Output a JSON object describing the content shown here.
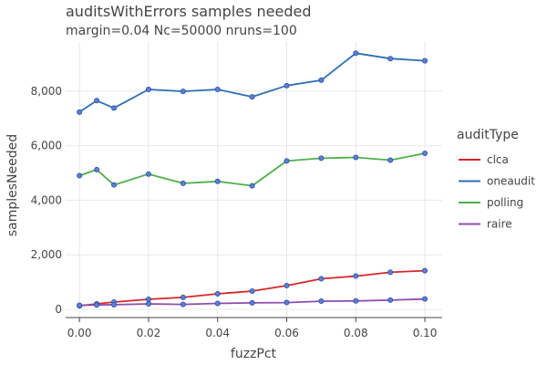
{
  "chart_data": {
    "type": "line",
    "title": "auditsWithErrors samples needed",
    "subtitle": "margin=0.04 Nc=50000 nruns=100",
    "xlabel": "fuzzPct",
    "ylabel": "samplesNeeded",
    "xlim": [
      -0.004,
      0.105
    ],
    "ylim": [
      -300,
      9800
    ],
    "x_ticks": [
      0.0,
      0.02,
      0.04,
      0.06,
      0.08,
      0.1
    ],
    "x_tick_labels": [
      "0.00",
      "0.02",
      "0.04",
      "0.06",
      "0.08",
      "0.10"
    ],
    "y_ticks": [
      0,
      2000,
      4000,
      6000,
      8000
    ],
    "y_tick_labels": [
      "0",
      "2,000",
      "4,000",
      "6,000",
      "8,000"
    ],
    "grid": true,
    "legend_title": "auditType",
    "legend_position": "right",
    "marker_color": "#5b7fd6",
    "x": [
      0.0,
      0.005,
      0.01,
      0.02,
      0.03,
      0.04,
      0.05,
      0.06,
      0.07,
      0.08,
      0.09,
      0.1
    ],
    "series": [
      {
        "name": "clca",
        "color": "#d62728",
        "values": [
          130,
          200,
          270,
          370,
          440,
          570,
          670,
          870,
          1120,
          1220,
          1360,
          1420
        ]
      },
      {
        "name": "oneaudit",
        "color": "#2f6fb3",
        "values": [
          7230,
          7650,
          7380,
          8060,
          7990,
          8060,
          7790,
          8200,
          8400,
          9390,
          9190,
          9110
        ]
      },
      {
        "name": "polling",
        "color": "#4daf4a",
        "values": [
          4900,
          5120,
          4560,
          4960,
          4620,
          4690,
          4530,
          5440,
          5540,
          5570,
          5470,
          5720
        ]
      },
      {
        "name": "raire",
        "color": "#8e4cb0",
        "values": [
          150,
          160,
          170,
          200,
          180,
          220,
          240,
          250,
          300,
          310,
          340,
          380
        ]
      }
    ]
  }
}
